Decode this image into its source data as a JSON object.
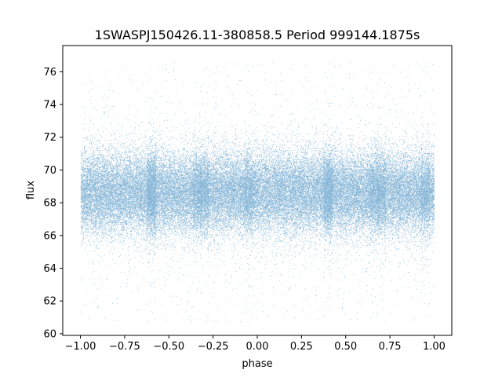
{
  "chart_data": {
    "type": "scatter",
    "title": "1SWASPJ150426.11-380858.5 Period 999144.1875s",
    "xlabel": "phase",
    "ylabel": "flux",
    "xlim": [
      -1.1,
      1.1
    ],
    "ylim": [
      59.9,
      77.6
    ],
    "xticks": [
      -1.0,
      -0.75,
      -0.5,
      -0.25,
      0.0,
      0.25,
      0.5,
      0.75,
      1.0
    ],
    "xtick_labels": [
      "−1.00",
      "−0.75",
      "−0.50",
      "−0.25",
      "0.00",
      "0.25",
      "0.50",
      "0.75",
      "1.00"
    ],
    "yticks": [
      60,
      62,
      64,
      66,
      68,
      70,
      72,
      74,
      76
    ],
    "ytick_labels": [
      "60",
      "62",
      "64",
      "66",
      "68",
      "70",
      "72",
      "74",
      "76"
    ],
    "grid": false,
    "marker_color": "#1f77b4",
    "phase_range": [
      -1.0,
      1.0
    ],
    "flux_range": [
      60.7,
      76.6
    ],
    "flux_core_range": [
      66.0,
      71.5
    ],
    "flux_median": 68.6,
    "approx_point_count": 60000,
    "dense_columns_phase": [
      -0.6,
      -0.3,
      -0.05,
      0.4,
      0.66
    ]
  }
}
